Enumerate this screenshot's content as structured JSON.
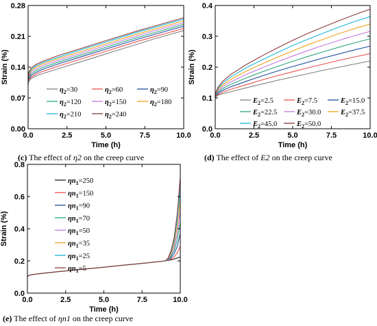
{
  "captions": {
    "c": {
      "prefix": "(c)",
      "text": "The effect of",
      "symbol": "η2",
      "suffix": "on the creep curve"
    },
    "d": {
      "prefix": "(d)",
      "text": "The effect of",
      "symbol": "E2",
      "suffix": "on the creep curve"
    },
    "e": {
      "prefix": "(e)",
      "text": "The effect of",
      "symbol": "ηn1",
      "suffix": "on the creep curve"
    }
  },
  "chart_data": [
    {
      "id": "c",
      "type": "line",
      "xlabel": "Time (h)",
      "ylabel": "Strain (%)",
      "xlim": [
        0,
        10
      ],
      "ylim": [
        0,
        0.28
      ],
      "xticks": [
        "0.0",
        "2.5",
        "5.0",
        "7.5",
        "10.0"
      ],
      "yticks": [
        "0.00",
        "0.07",
        "0.14",
        "0.21",
        "0.28"
      ],
      "x": [
        0,
        0.05,
        0.2,
        0.5,
        1,
        2,
        3,
        4,
        5,
        6,
        7,
        8,
        9,
        10
      ],
      "series": [
        {
          "name": "η2=30",
          "color": "#7f7f7f",
          "values": [
            0.1,
            0.108,
            0.114,
            0.12,
            0.126,
            0.137,
            0.148,
            0.159,
            0.17,
            0.181,
            0.192,
            0.203,
            0.213,
            0.223
          ]
        },
        {
          "name": "η2=60",
          "color": "#e8514f",
          "values": [
            0.1,
            0.11,
            0.117,
            0.124,
            0.131,
            0.143,
            0.154,
            0.165,
            0.176,
            0.187,
            0.198,
            0.208,
            0.218,
            0.228
          ]
        },
        {
          "name": "η2=90",
          "color": "#1f4f9e",
          "values": [
            0.1,
            0.113,
            0.121,
            0.128,
            0.136,
            0.148,
            0.159,
            0.17,
            0.181,
            0.192,
            0.203,
            0.213,
            0.223,
            0.233
          ]
        },
        {
          "name": "η2=120",
          "color": "#2ca87a",
          "values": [
            0.1,
            0.116,
            0.125,
            0.132,
            0.14,
            0.152,
            0.163,
            0.174,
            0.185,
            0.196,
            0.207,
            0.217,
            0.227,
            0.237
          ]
        },
        {
          "name": "η2=150",
          "color": "#c37be0",
          "values": [
            0.1,
            0.119,
            0.129,
            0.136,
            0.144,
            0.156,
            0.167,
            0.178,
            0.189,
            0.2,
            0.211,
            0.221,
            0.231,
            0.241
          ]
        },
        {
          "name": "η2=180",
          "color": "#f0a21c",
          "values": [
            0.1,
            0.122,
            0.132,
            0.14,
            0.148,
            0.16,
            0.171,
            0.182,
            0.193,
            0.204,
            0.215,
            0.225,
            0.235,
            0.245
          ]
        },
        {
          "name": "η2=210",
          "color": "#19b7d8",
          "values": [
            0.1,
            0.125,
            0.135,
            0.143,
            0.151,
            0.163,
            0.175,
            0.186,
            0.197,
            0.208,
            0.219,
            0.229,
            0.239,
            0.249
          ]
        },
        {
          "name": "η2=240",
          "color": "#8b3a3a",
          "values": [
            0.1,
            0.128,
            0.138,
            0.146,
            0.154,
            0.167,
            0.178,
            0.189,
            0.2,
            0.211,
            0.222,
            0.232,
            0.242,
            0.252
          ]
        }
      ],
      "legend": {
        "position": "bottom-right",
        "columns": 3
      }
    },
    {
      "id": "d",
      "type": "line",
      "xlabel": "Time (h)",
      "ylabel": "Strain (%)",
      "xlim": [
        0,
        10
      ],
      "ylim": [
        0,
        0.4
      ],
      "xticks": [
        "0.0",
        "2.5",
        "5.0",
        "7.5",
        "10.0"
      ],
      "yticks": [
        "0.0",
        "0.1",
        "0.2",
        "0.3",
        "0.4"
      ],
      "x": [
        0,
        0.05,
        0.2,
        0.5,
        1,
        2,
        3,
        4,
        5,
        6,
        7,
        8,
        9,
        10
      ],
      "series": [
        {
          "name": "E2=2.5",
          "color": "#7f7f7f",
          "values": [
            0.1,
            0.104,
            0.109,
            0.114,
            0.12,
            0.133,
            0.145,
            0.157,
            0.168,
            0.179,
            0.19,
            0.2,
            0.21,
            0.22
          ]
        },
        {
          "name": "E2=7.5",
          "color": "#e8514f",
          "values": [
            0.1,
            0.106,
            0.112,
            0.119,
            0.128,
            0.143,
            0.158,
            0.172,
            0.185,
            0.198,
            0.21,
            0.222,
            0.233,
            0.244
          ]
        },
        {
          "name": "E2=15.0",
          "color": "#1f4f9e",
          "values": [
            0.1,
            0.108,
            0.116,
            0.125,
            0.136,
            0.154,
            0.171,
            0.187,
            0.202,
            0.216,
            0.23,
            0.243,
            0.256,
            0.268
          ]
        },
        {
          "name": "E2=22.5",
          "color": "#2ca87a",
          "values": [
            0.1,
            0.11,
            0.12,
            0.131,
            0.144,
            0.165,
            0.184,
            0.202,
            0.219,
            0.235,
            0.25,
            0.265,
            0.279,
            0.292
          ]
        },
        {
          "name": "E2=30.0",
          "color": "#c37be0",
          "values": [
            0.1,
            0.112,
            0.124,
            0.137,
            0.152,
            0.176,
            0.197,
            0.217,
            0.236,
            0.254,
            0.271,
            0.287,
            0.302,
            0.316
          ]
        },
        {
          "name": "E2=37.5",
          "color": "#f0a21c",
          "values": [
            0.1,
            0.115,
            0.128,
            0.143,
            0.16,
            0.187,
            0.21,
            0.232,
            0.253,
            0.273,
            0.291,
            0.309,
            0.325,
            0.34
          ]
        },
        {
          "name": "E2=45.0",
          "color": "#19b7d8",
          "values": [
            0.1,
            0.117,
            0.132,
            0.149,
            0.168,
            0.198,
            0.223,
            0.247,
            0.27,
            0.291,
            0.311,
            0.33,
            0.348,
            0.364
          ]
        },
        {
          "name": "E2=50.0",
          "color": "#8b3a3a",
          "values": [
            0.1,
            0.119,
            0.136,
            0.155,
            0.176,
            0.208,
            0.236,
            0.262,
            0.287,
            0.31,
            0.331,
            0.351,
            0.37,
            0.388
          ]
        }
      ],
      "legend": {
        "position": "bottom-right",
        "columns": 3
      }
    },
    {
      "id": "e",
      "type": "line",
      "xlabel": "Time (h)",
      "ylabel": "Strain (%)",
      "xlim": [
        0,
        10
      ],
      "ylim": [
        0,
        0.8
      ],
      "xticks": [
        "0.0",
        "2.5",
        "5.0",
        "7.5",
        "10.0"
      ],
      "yticks": [
        "0.0",
        "0.2",
        "0.4",
        "0.6",
        "0.8"
      ],
      "x": [
        0,
        0.05,
        0.2,
        0.5,
        1,
        2,
        3,
        4,
        5,
        6,
        7,
        8,
        9,
        9.2,
        9.4,
        9.6,
        9.8,
        10
      ],
      "series": [
        {
          "name": "ηn1=250",
          "color": "#222222",
          "values": [
            0.1,
            0.108,
            0.113,
            0.118,
            0.123,
            0.133,
            0.142,
            0.152,
            0.161,
            0.171,
            0.18,
            0.19,
            0.2,
            0.203,
            0.207,
            0.212,
            0.218,
            0.225
          ]
        },
        {
          "name": "ηn1=150",
          "color": "#e8514f",
          "values": [
            0.1,
            0.108,
            0.113,
            0.118,
            0.123,
            0.133,
            0.142,
            0.152,
            0.161,
            0.171,
            0.18,
            0.19,
            0.2,
            0.205,
            0.212,
            0.225,
            0.25,
            0.29
          ]
        },
        {
          "name": "ηn1=90",
          "color": "#1f4f9e",
          "values": [
            0.1,
            0.108,
            0.113,
            0.118,
            0.123,
            0.133,
            0.142,
            0.152,
            0.161,
            0.171,
            0.18,
            0.19,
            0.2,
            0.207,
            0.22,
            0.245,
            0.29,
            0.37
          ]
        },
        {
          "name": "ηn1=70",
          "color": "#2ca87a",
          "values": [
            0.1,
            0.108,
            0.113,
            0.118,
            0.123,
            0.133,
            0.142,
            0.152,
            0.161,
            0.171,
            0.18,
            0.19,
            0.2,
            0.209,
            0.228,
            0.265,
            0.33,
            0.44
          ]
        },
        {
          "name": "ηn1=50",
          "color": "#c37be0",
          "values": [
            0.1,
            0.108,
            0.113,
            0.118,
            0.123,
            0.133,
            0.142,
            0.152,
            0.161,
            0.171,
            0.18,
            0.19,
            0.2,
            0.211,
            0.237,
            0.285,
            0.37,
            0.51
          ]
        },
        {
          "name": "ηn1=35",
          "color": "#f0a21c",
          "values": [
            0.1,
            0.108,
            0.113,
            0.118,
            0.123,
            0.133,
            0.142,
            0.152,
            0.161,
            0.171,
            0.18,
            0.19,
            0.2,
            0.213,
            0.246,
            0.305,
            0.41,
            0.58
          ]
        },
        {
          "name": "ηn1=25",
          "color": "#19b7d8",
          "values": [
            0.1,
            0.108,
            0.113,
            0.118,
            0.123,
            0.133,
            0.142,
            0.152,
            0.161,
            0.171,
            0.18,
            0.19,
            0.2,
            0.215,
            0.255,
            0.325,
            0.45,
            0.65
          ]
        },
        {
          "name": "ηn1=5",
          "color": "#8b3a3a",
          "values": [
            0.1,
            0.108,
            0.113,
            0.118,
            0.123,
            0.133,
            0.142,
            0.152,
            0.161,
            0.171,
            0.18,
            0.19,
            0.2,
            0.217,
            0.264,
            0.345,
            0.49,
            0.72
          ]
        }
      ],
      "legend": {
        "position": "top-left",
        "columns": 1
      }
    }
  ]
}
